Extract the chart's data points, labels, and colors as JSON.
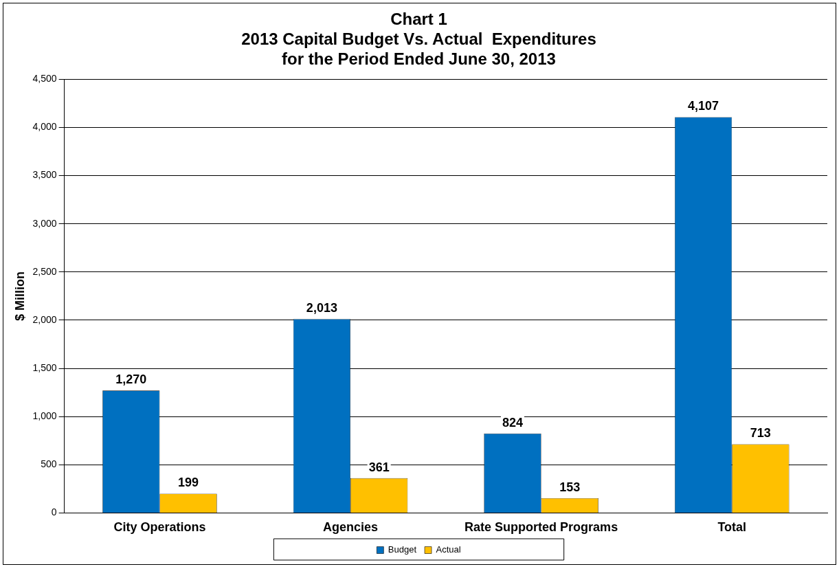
{
  "chart_data": {
    "type": "bar",
    "title": "Chart 1\n2013 Capital Budget Vs. Actual  Expenditures\nfor the Period Ended June 30, 2013",
    "ylabel": "$ Million",
    "categories": [
      "City Operations",
      "Agencies",
      "Rate Supported Programs",
      "Total"
    ],
    "series": [
      {
        "name": "Budget",
        "color": "#0070c0",
        "values": [
          1270,
          2013,
          824,
          4107
        ],
        "value_labels": [
          "1,270",
          "2,013",
          "824",
          "4,107"
        ]
      },
      {
        "name": "Actual",
        "color": "#ffc000",
        "values": [
          199,
          361,
          153,
          713
        ],
        "value_labels": [
          "199",
          "361",
          "153",
          "713"
        ]
      }
    ],
    "ylim": [
      0,
      4500
    ],
    "yticks": [
      0,
      500,
      {
        "value": 1000,
        "label": "1,000"
      },
      {
        "value": 1500,
        "label": "1,500"
      },
      {
        "value": 2000,
        "label": "2,000"
      },
      {
        "value": 2500,
        "label": "2,500"
      },
      {
        "value": 3000,
        "label": "3,000"
      },
      {
        "value": 3500,
        "label": "3,500"
      },
      {
        "value": 4000,
        "label": "4,000"
      },
      {
        "value": 4500,
        "label": "4,500"
      }
    ],
    "grid": "y",
    "legend": "bottom"
  }
}
